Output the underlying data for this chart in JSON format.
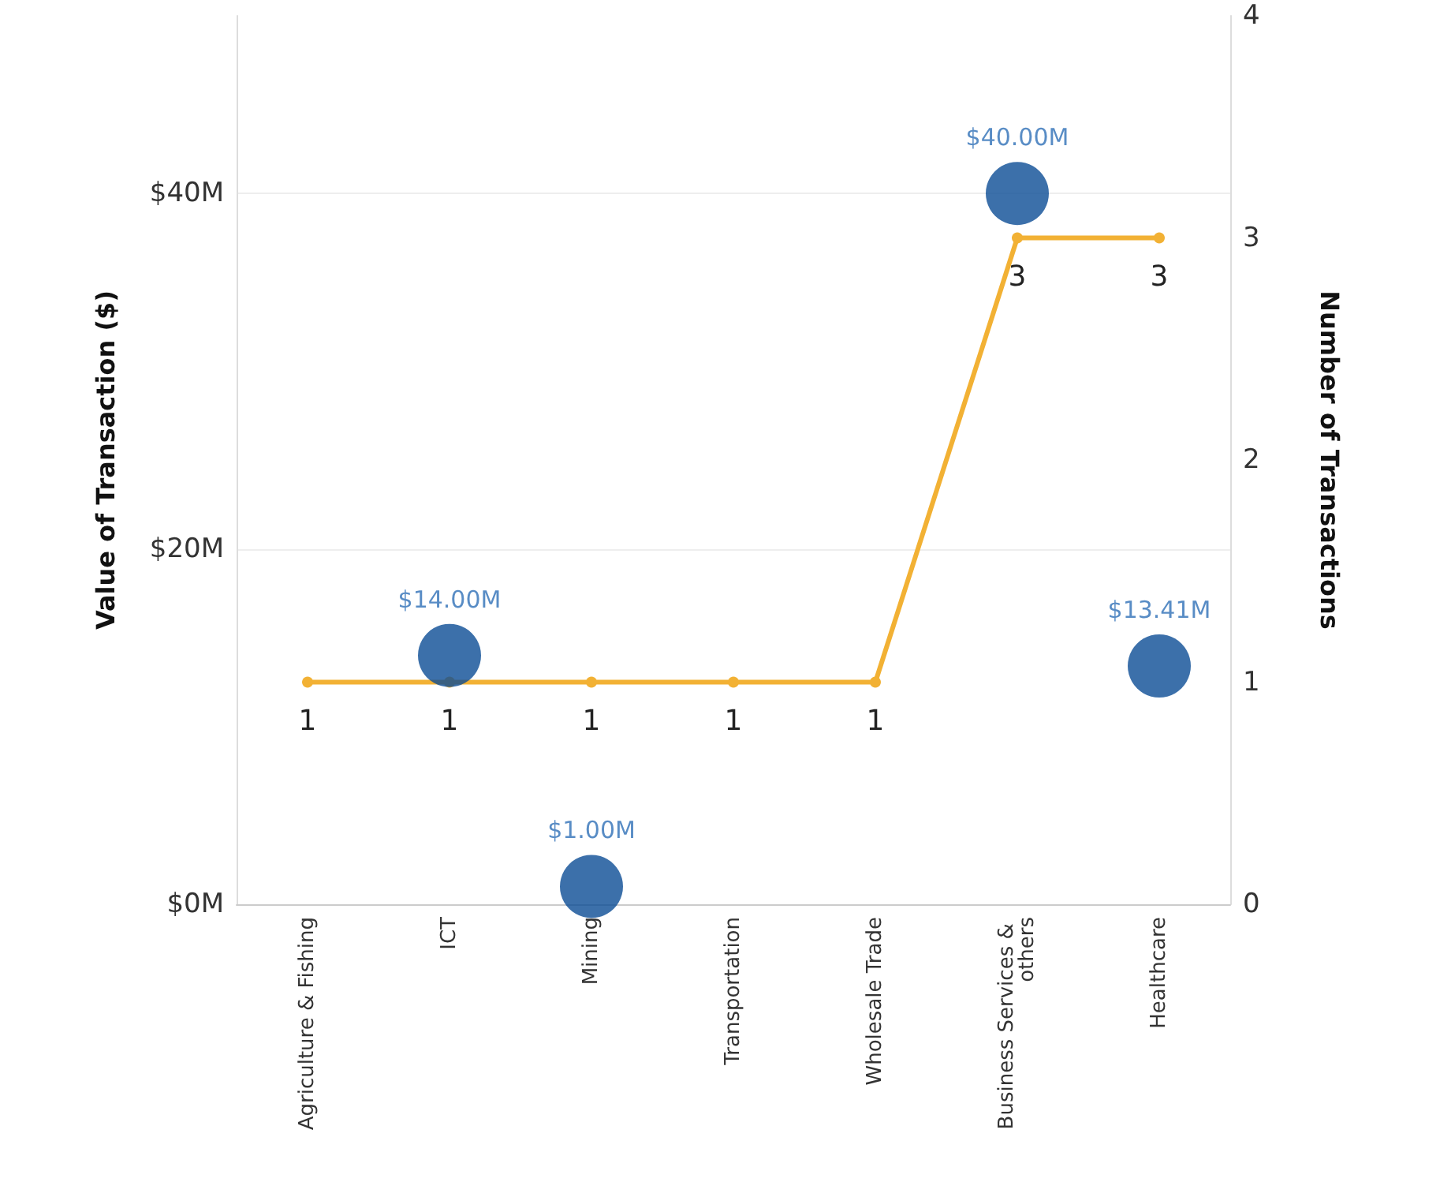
{
  "chart_data": {
    "type": "scatter",
    "ylabel": "Value of Transaction ($)",
    "y2label": "Number of Transactions",
    "categories": [
      "Agriculture & Fishing",
      "ICT",
      "Mining",
      "Transportation",
      "Wholesale Trade",
      "Business Services & others",
      "Healthcare"
    ],
    "series": [
      {
        "color": "#0b4c95",
        "values": [
          null,
          14,
          1,
          null,
          null,
          40,
          13.41
        ],
        "value_labels": [
          null,
          "$14.00M",
          "$1.00M",
          null,
          null,
          "$40.00M",
          "$13.41M"
        ],
        "marker": "circle"
      },
      {
        "type": "line",
        "axis": "y2",
        "color": "#f2b134",
        "values": [
          1,
          1,
          1,
          1,
          1,
          3,
          3
        ],
        "value_labels": [
          "1",
          "1",
          "1",
          "1",
          "1",
          "3",
          "3"
        ],
        "marker": "circle",
        "line_style": "solid"
      }
    ],
    "ylim": [
      0,
      50
    ],
    "yticks": [
      {
        "value": 0,
        "label": "$0M"
      },
      {
        "value": 20,
        "label": "$20M"
      },
      {
        "value": 40,
        "label": "$40M"
      }
    ],
    "y2lim": [
      0,
      4
    ],
    "y2ticks": [
      0,
      1,
      2,
      3,
      4
    ],
    "grid": "y"
  }
}
